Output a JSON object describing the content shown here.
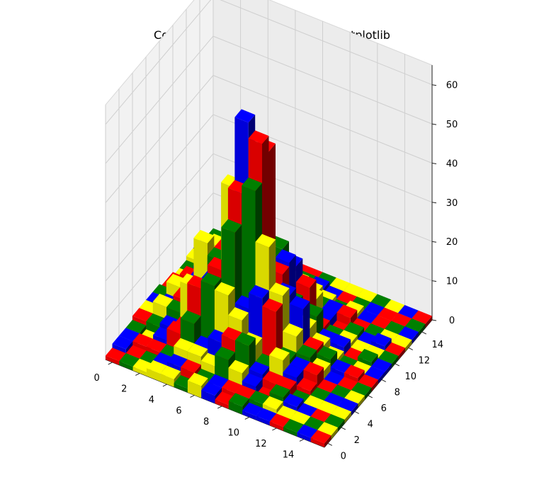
{
  "chart_data": {
    "type": "bar3d",
    "title": "Costruzione con LEGO - Python Matplotlib",
    "xlabel": "",
    "ylabel": "",
    "zlabel": "",
    "xlim": [
      0,
      16
    ],
    "ylim": [
      0,
      16
    ],
    "zlim": [
      0,
      65
    ],
    "x_ticks": [
      0,
      2,
      4,
      6,
      8,
      10,
      12,
      14
    ],
    "y_ticks": [
      0,
      2,
      4,
      6,
      8,
      10,
      12,
      14
    ],
    "z_ticks": [
      0,
      10,
      20,
      30,
      40,
      50,
      60
    ],
    "grid": true,
    "palette": [
      "#ff0000",
      "#0000ff",
      "#ffff00",
      "#008000",
      "#ff0000",
      "#0000ff",
      "#ffff00",
      "#008000",
      "#ff0000",
      "#ffff00",
      "#0000ff",
      "#008000",
      "#ffff00",
      "#ff0000",
      "#0000ff",
      "#008000"
    ],
    "peak_columns": [
      {
        "x": 6,
        "y": 7,
        "z": 56
      },
      {
        "x": 7,
        "y": 7,
        "z": 52
      },
      {
        "x": 7,
        "y": 8,
        "z": 48
      },
      {
        "x": 6,
        "y": 6,
        "z": 40
      },
      {
        "x": 5,
        "y": 7,
        "z": 38
      }
    ]
  }
}
